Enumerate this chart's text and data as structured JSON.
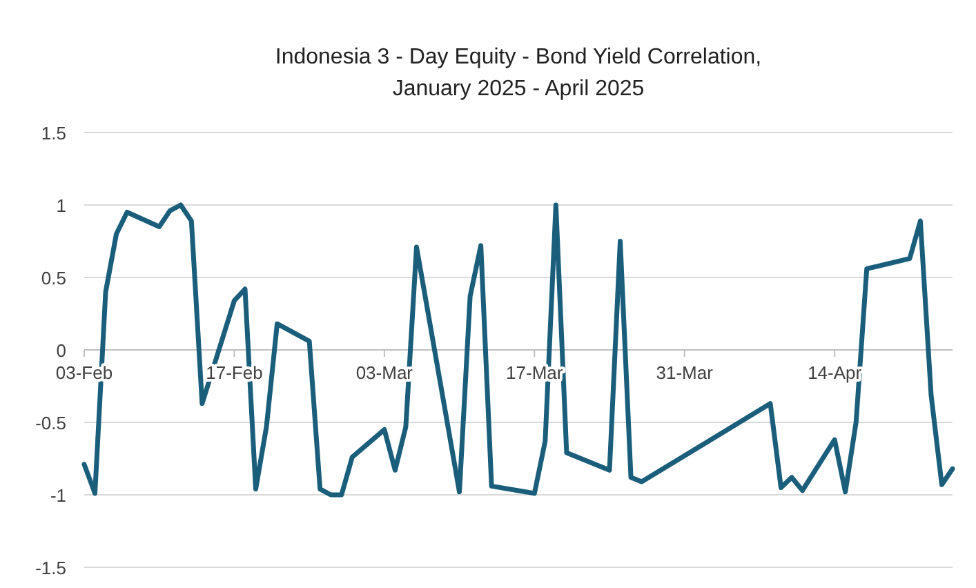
{
  "chart_data": {
    "type": "line",
    "title": "Indonesia 3 - Day Equity - Bond Yield Correlation,",
    "subtitle": "January 2025 - April 2025",
    "x": [
      "2025-02-03",
      "2025-02-04",
      "2025-02-05",
      "2025-02-06",
      "2025-02-07",
      "2025-02-10",
      "2025-02-11",
      "2025-02-12",
      "2025-02-13",
      "2025-02-14",
      "2025-02-17",
      "2025-02-18",
      "2025-02-19",
      "2025-02-20",
      "2025-02-21",
      "2025-02-24",
      "2025-02-25",
      "2025-02-26",
      "2025-02-27",
      "2025-02-28",
      "2025-03-03",
      "2025-03-04",
      "2025-03-05",
      "2025-03-06",
      "2025-03-10",
      "2025-03-11",
      "2025-03-12",
      "2025-03-13",
      "2025-03-17",
      "2025-03-18",
      "2025-03-19",
      "2025-03-20",
      "2025-03-24",
      "2025-03-25",
      "2025-03-26",
      "2025-03-27",
      "2025-04-08",
      "2025-04-09",
      "2025-04-10",
      "2025-04-11",
      "2025-04-14",
      "2025-04-15",
      "2025-04-16",
      "2025-04-17",
      "2025-04-21",
      "2025-04-22",
      "2025-04-23",
      "2025-04-24",
      "2025-04-25"
    ],
    "series": [
      {
        "color": "#1b5e7b",
        "values": [
          -0.79,
          -0.99,
          0.4,
          0.8,
          0.95,
          0.85,
          0.96,
          1.0,
          0.89,
          -0.37,
          0.34,
          0.42,
          -0.96,
          -0.53,
          0.18,
          0.06,
          -0.96,
          -1.0,
          -1.0,
          -0.74,
          -0.55,
          -0.83,
          -0.53,
          0.71,
          -0.98,
          0.37,
          0.72,
          -0.94,
          -0.99,
          -0.63,
          1.0,
          -0.71,
          -0.83,
          0.75,
          -0.88,
          -0.91,
          -0.37,
          -0.95,
          -0.88,
          -0.97,
          -0.62,
          -0.98,
          -0.5,
          0.56,
          0.63,
          0.89,
          -0.31,
          -0.93,
          -0.82
        ]
      }
    ],
    "xlim": [
      "2025-02-03",
      "2025-04-25"
    ],
    "xticks": [
      {
        "value": "2025-02-03",
        "label": "03-Feb"
      },
      {
        "value": "2025-02-17",
        "label": "17-Feb"
      },
      {
        "value": "2025-03-03",
        "label": "03-Mar"
      },
      {
        "value": "2025-03-17",
        "label": "17-Mar"
      },
      {
        "value": "2025-03-31",
        "label": "31-Mar"
      },
      {
        "value": "2025-04-14",
        "label": "14-Apr"
      }
    ],
    "ylim": [
      -1.5,
      1.5
    ],
    "yticks": [
      -1.5,
      {
        "value": -1,
        "label": "-1"
      },
      -0.5,
      0,
      0.5,
      1,
      1.5
    ],
    "grid": "y",
    "marker": "none",
    "line_style": "solid"
  }
}
